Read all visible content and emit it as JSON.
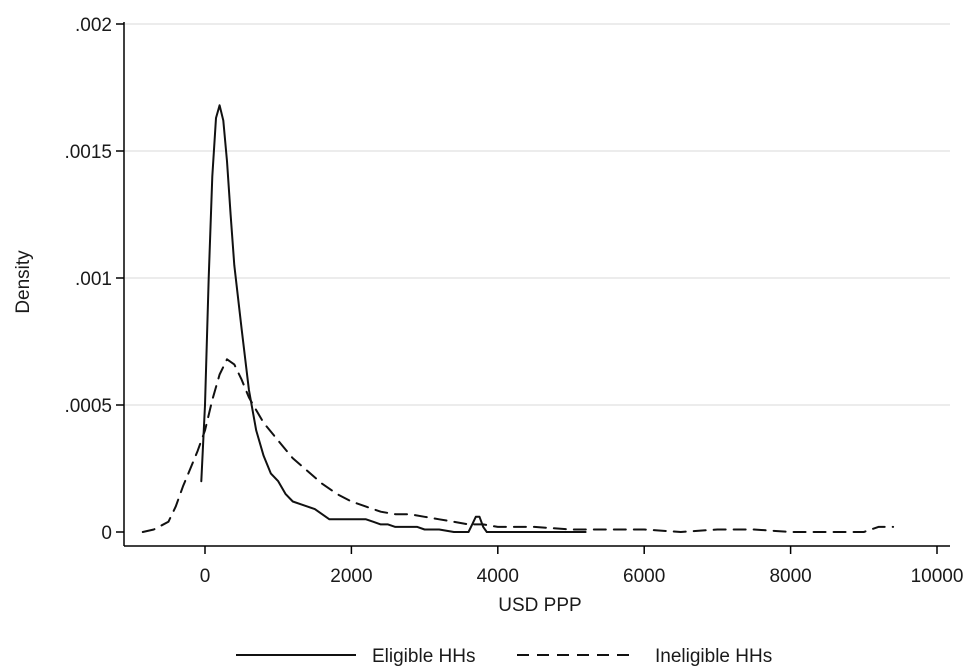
{
  "chart_data": {
    "type": "line",
    "xlabel": "USD PPP",
    "ylabel": "Density",
    "xlim": [
      -1000,
      10000
    ],
    "ylim": [
      0,
      0.002
    ],
    "grid": true,
    "legend_position": "bottom",
    "x_ticks": [
      {
        "value": 0,
        "label": "0"
      },
      {
        "value": 2000,
        "label": "2000"
      },
      {
        "value": 4000,
        "label": "4000"
      },
      {
        "value": 6000,
        "label": "6000"
      },
      {
        "value": 8000,
        "label": "8000"
      },
      {
        "value": 10000,
        "label": "10000"
      }
    ],
    "y_ticks": [
      {
        "value": 0,
        "label": "0"
      },
      {
        "value": 0.0005,
        "label": ".0005"
      },
      {
        "value": 0.001,
        "label": ".001"
      },
      {
        "value": 0.0015,
        "label": ".0015"
      },
      {
        "value": 0.002,
        "label": ".002"
      }
    ],
    "series": [
      {
        "name": "Eligible HHs",
        "line_style": "solid",
        "color": "#111111",
        "x": [
          -50,
          0,
          50,
          100,
          150,
          200,
          250,
          300,
          350,
          400,
          500,
          600,
          700,
          800,
          900,
          1000,
          1100,
          1200,
          1300,
          1400,
          1500,
          1600,
          1700,
          1800,
          1900,
          2000,
          2100,
          2200,
          2300,
          2400,
          2500,
          2600,
          2700,
          2800,
          2900,
          3000,
          3200,
          3400,
          3600,
          3650,
          3700,
          3750,
          3800,
          3850,
          3900,
          4000,
          4500,
          5000,
          5200
        ],
        "y": [
          0.0002,
          0.0005,
          0.001,
          0.0014,
          0.00163,
          0.00168,
          0.00162,
          0.00146,
          0.00125,
          0.00105,
          0.0008,
          0.00056,
          0.0004,
          0.0003,
          0.00023,
          0.0002,
          0.00015,
          0.00012,
          0.00011,
          0.0001,
          9e-05,
          7e-05,
          5e-05,
          5e-05,
          5e-05,
          5e-05,
          5e-05,
          5e-05,
          4e-05,
          3e-05,
          3e-05,
          2e-05,
          2e-05,
          2e-05,
          2e-05,
          1e-05,
          1e-05,
          0.0,
          0.0,
          3e-05,
          6e-05,
          6e-05,
          2e-05,
          0.0,
          0.0,
          0.0,
          0.0,
          0.0,
          0.0
        ]
      },
      {
        "name": "Ineligible HHs",
        "line_style": "dashed",
        "color": "#111111",
        "x": [
          -850,
          -700,
          -500,
          -400,
          -300,
          -200,
          -100,
          0,
          100,
          200,
          300,
          400,
          500,
          600,
          700,
          800,
          1000,
          1200,
          1400,
          1600,
          1800,
          2000,
          2200,
          2400,
          2600,
          2800,
          3000,
          3200,
          3400,
          3600,
          3800,
          4000,
          4500,
          5000,
          5500,
          6000,
          6500,
          7000,
          7500,
          8000,
          8500,
          9000,
          9200,
          9400
        ],
        "y": [
          0.0,
          1e-05,
          4e-05,
          0.0001,
          0.00018,
          0.00025,
          0.00032,
          0.0004,
          0.00052,
          0.00062,
          0.00068,
          0.00066,
          0.0006,
          0.00053,
          0.00048,
          0.00043,
          0.00036,
          0.00029,
          0.00024,
          0.00019,
          0.00015,
          0.00012,
          0.0001,
          8e-05,
          7e-05,
          7e-05,
          6e-05,
          5e-05,
          4e-05,
          3e-05,
          3e-05,
          2e-05,
          2e-05,
          1e-05,
          1e-05,
          1e-05,
          0.0,
          1e-05,
          1e-05,
          0.0,
          0.0,
          0.0,
          2e-05,
          2e-05
        ]
      }
    ]
  }
}
